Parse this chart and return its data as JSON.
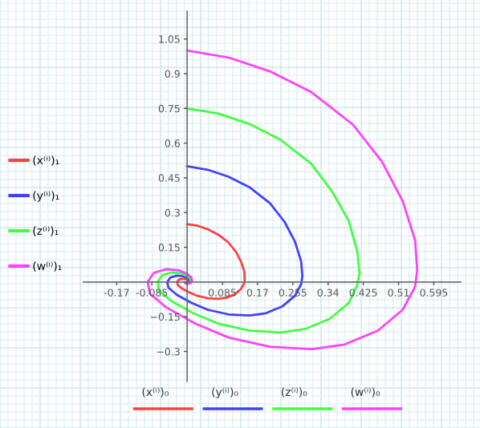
{
  "chart_data": {
    "type": "line",
    "xlim": [
      -0.25,
      0.66
    ],
    "ylim": [
      -0.43,
      1.17
    ],
    "xticks": [
      -0.17,
      -0.085,
      {
        "value": 0,
        "label": null
      },
      0.085,
      0.17,
      0.255,
      0.34,
      0.425,
      0.51,
      0.595
    ],
    "yticks": [
      {
        "value": -0.3,
        "label": "−0.3"
      },
      {
        "value": -0.15,
        "label": "−0.15"
      },
      {
        "value": 0,
        "label": null
      },
      0.15,
      0.3,
      0.45,
      0.6,
      0.75,
      0.9,
      1.05
    ],
    "grid": true,
    "legend": "left",
    "annotations": [
      "(x⁽ⁱ⁾)₀",
      "(y⁽ⁱ⁾)₀",
      "(z⁽ⁱ⁾)₀",
      "(w⁽ⁱ⁾)₀"
    ],
    "series": [
      {
        "name": "(x⁽ⁱ⁾)₁",
        "color": "#ff4040",
        "x": [
          0,
          0.025,
          0.05,
          0.075,
          0.1,
          0.118,
          0.13,
          0.138,
          0.139,
          0.138,
          0.13,
          0.115,
          0.095,
          0.075,
          0.05,
          0.025,
          0.005,
          -0.0125,
          -0.0225,
          -0.024,
          -0.02,
          -0.0125,
          -0.005,
          0,
          0.0025,
          0.003,
          0.002,
          0,
          -0.001,
          0
        ],
        "values": [
          0.25,
          0.243,
          0.228,
          0.205,
          0.17,
          0.13,
          0.088,
          0.045,
          0.013,
          -0.005,
          -0.03,
          -0.053,
          -0.068,
          -0.073,
          -0.07,
          -0.06,
          -0.045,
          -0.028,
          -0.013,
          0,
          0.01,
          0.014,
          0.013,
          0.009,
          0.005,
          0.001,
          -0.001,
          -0.002,
          -0.001,
          0
        ]
      },
      {
        "name": "(y⁽ⁱ⁾)₁",
        "color": "#4040ff",
        "x": [
          0,
          0.05,
          0.1,
          0.15,
          0.2,
          0.235,
          0.26,
          0.275,
          0.278,
          0.275,
          0.26,
          0.23,
          0.19,
          0.15,
          0.1,
          0.05,
          0.01,
          -0.025,
          -0.045,
          -0.048,
          -0.04,
          -0.025,
          -0.01,
          0,
          0.005,
          0.006,
          0.004,
          0,
          -0.0025,
          0
        ],
        "values": [
          0.5,
          0.485,
          0.455,
          0.41,
          0.34,
          0.26,
          0.175,
          0.09,
          0.025,
          -0.01,
          -0.06,
          -0.105,
          -0.135,
          -0.145,
          -0.14,
          -0.12,
          -0.09,
          -0.055,
          -0.025,
          0,
          0.02,
          0.0275,
          0.025,
          0.0175,
          0.01,
          0.0025,
          -0.0025,
          -0.004,
          -0.0025,
          0
        ]
      },
      {
        "name": "(z⁽ⁱ⁾)₁",
        "color": "#40ff40",
        "x": [
          0,
          0.075,
          0.15,
          0.225,
          0.3,
          0.35,
          0.39,
          0.41,
          0.416,
          0.41,
          0.39,
          0.345,
          0.285,
          0.225,
          0.15,
          0.075,
          0.015,
          -0.0375,
          -0.0675,
          -0.071,
          -0.06,
          -0.0375,
          -0.015,
          0,
          0.0075,
          0.009,
          0.006,
          0,
          -0.004,
          0
        ],
        "values": [
          0.75,
          0.728,
          0.683,
          0.615,
          0.51,
          0.39,
          0.263,
          0.135,
          0.038,
          -0.015,
          -0.09,
          -0.158,
          -0.203,
          -0.218,
          -0.21,
          -0.18,
          -0.135,
          -0.083,
          -0.038,
          0,
          0.03,
          0.041,
          0.038,
          0.026,
          0.015,
          0.004,
          -0.004,
          -0.006,
          -0.004,
          0
        ]
      },
      {
        "name": "(w⁽ⁱ⁾)₁",
        "color": "#ff40ff",
        "x": [
          0,
          0.1,
          0.2,
          0.3,
          0.4,
          0.47,
          0.52,
          0.55,
          0.555,
          0.55,
          0.52,
          0.46,
          0.38,
          0.3,
          0.2,
          0.1,
          0.02,
          -0.05,
          -0.09,
          -0.095,
          -0.08,
          -0.05,
          -0.02,
          0,
          0.01,
          0.012,
          0.008,
          0,
          -0.005,
          0
        ],
        "values": [
          1.0,
          0.97,
          0.91,
          0.82,
          0.68,
          0.52,
          0.35,
          0.18,
          0.05,
          -0.02,
          -0.12,
          -0.21,
          -0.27,
          -0.29,
          -0.28,
          -0.24,
          -0.18,
          -0.11,
          -0.05,
          0,
          0.04,
          0.055,
          0.05,
          0.035,
          0.02,
          0.005,
          -0.005,
          -0.008,
          -0.005,
          0
        ]
      }
    ]
  }
}
